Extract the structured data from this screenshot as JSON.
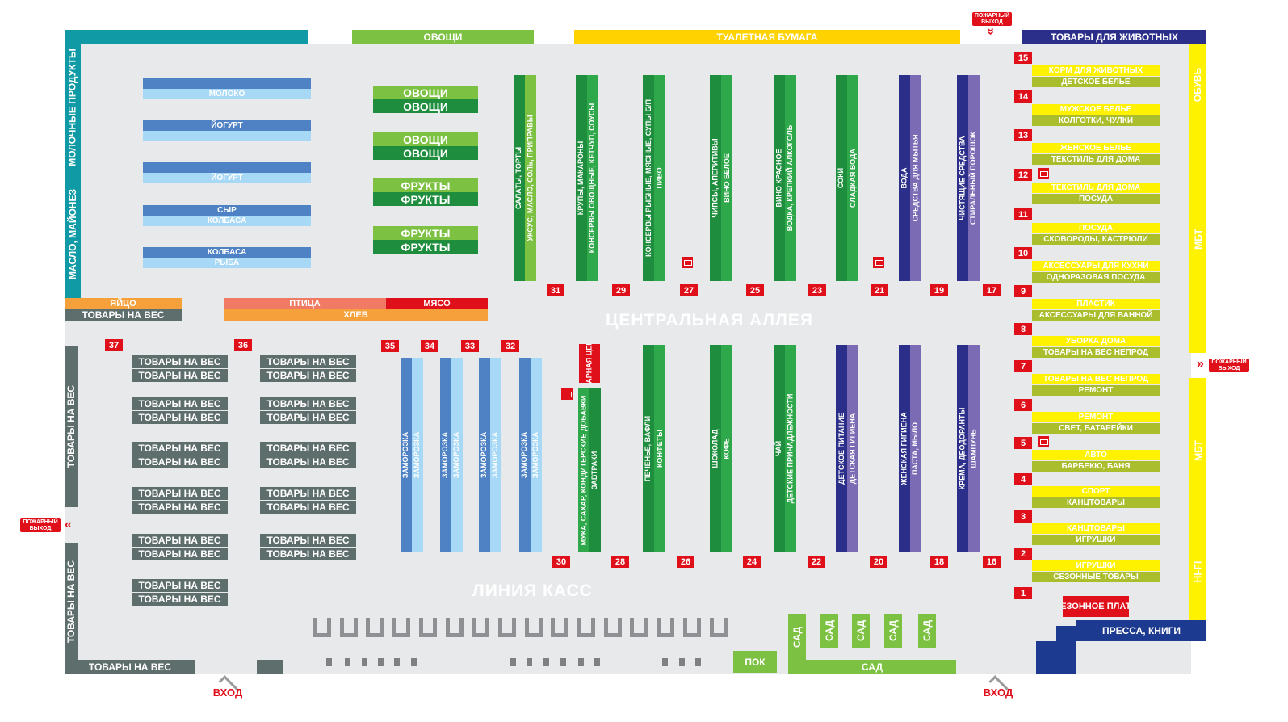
{
  "colors": {
    "teal": "#0f9aa6",
    "lime": "#7dc143",
    "darkgreen": "#1e8e3e",
    "green": "#2ea84a",
    "yellow": "#ffd200",
    "lightyellow": "#fff200",
    "olive": "#aabd2c",
    "navy": "#2b2f8a",
    "purple": "#7b6bb5",
    "blue": "#4f82c4",
    "lightblue": "#a7d8f5",
    "slate": "#5e6e6c",
    "orange": "#f6a03c",
    "salmon": "#f07a63",
    "red": "#e0101b",
    "grey": "#8f9093",
    "royal": "#1c3a8f"
  },
  "top": {
    "vegetables": "ОВОЩИ",
    "toilet_paper": "ТУАЛЕТНАЯ БУМАГА",
    "pets": "ТОВАРЫ ДЛЯ ЖИВОТНЫХ"
  },
  "left_wall": {
    "dairy": "МОЛОЧНЫЕ ПРОДУКТЫ",
    "oil": "МАСЛО, МАЙОНЕЗ",
    "weight_top": "ТОВАРЫ НА ВЕС",
    "weight_bottom": "ТОВАРЫ НА ВЕС",
    "weight_floor": "ТОВАРЫ НА ВЕС"
  },
  "right_wall": {
    "shoes": "ОБУВЬ",
    "mbt1": "МБТ",
    "mbt2": "МБТ",
    "hifi": "HI-FI"
  },
  "dairy_racks": [
    {
      "top": "",
      "bottom": "МОЛОКО"
    },
    {
      "top": "ЙОГУРТ",
      "bottom": ""
    },
    {
      "top": "",
      "bottom": "ЙОГУРТ"
    },
    {
      "top": "СЫР",
      "bottom": "КОЛБАСА"
    },
    {
      "top": "КОЛБАСА",
      "bottom": "РЫБА"
    }
  ],
  "produce": [
    {
      "top": "ОВОЩИ",
      "bottom": "ОВОЩИ"
    },
    {
      "top": "ОВОЩИ",
      "bottom": "ОВОЩИ"
    },
    {
      "top": "ФРУКТЫ",
      "bottom": "ФРУКТЫ"
    },
    {
      "top": "ФРУКТЫ",
      "bottom": "ФРУКТЫ"
    }
  ],
  "mid_left": {
    "egg": "ЯЙЦО",
    "weight": "ТОВАРЫ НА ВЕС",
    "poultry": "ПТИЦА",
    "meat": "МЯСО",
    "bread": "ХЛЕБ"
  },
  "upper_aisles": [
    {
      "a": "САЛАТЫ, ТОРТЫ",
      "b": "УКСУС, МАСЛО, СОЛЬ, ПРИПРАВЫ",
      "num": "31"
    },
    {
      "a": "КРУПЫ, МАКАРОНЫ",
      "b": "КОНСЕРВЫ ОВОЩНЫЕ, КЕТЧУП, СОУСЫ",
      "num": "29"
    },
    {
      "a": "КОНСЕРВЫ РЫБНЫЕ, МЯСНЫЕ, СУПЫ Б/П",
      "b": "ПИВО",
      "num": "27"
    },
    {
      "a": "ЧИПСЫ, АПЕРИТИВЫ",
      "b": "ВИНО БЕЛОЕ",
      "num": "25"
    },
    {
      "a": "ВИНО КРАСНОЕ",
      "b": "ВОДКА, КРЕПКИЙ АЛКОГОЛЬ",
      "num": "23"
    },
    {
      "a": "СОКИ",
      "b": "СЛАДКАЯ ВОДА",
      "num": "21"
    },
    {
      "a": "ВОДА",
      "b": "СРЕДСТВА ДЛЯ МЫТЬЯ",
      "num": "19"
    },
    {
      "a": "ЧИСТЯЩИЕ СРЕДСТВА",
      "b": "СТИРАЛЬНЫЙ ПОРОШОК",
      "num": "17"
    }
  ],
  "central_alley": "ЦЕНТРАЛЬНАЯ АЛЛЕЯ",
  "checkout_line": "ЛИНИЯ КАСС",
  "weight_tables": [
    {
      "top": "ТОВАРЫ НА ВЕС",
      "bottom": "ТОВАРЫ НА ВЕС"
    },
    {
      "top": "ТОВАРЫ НА ВЕС",
      "bottom": "ТОВАРЫ НА ВЕС"
    },
    {
      "top": "ТОВАРЫ НА ВЕС",
      "bottom": "ТОВАРЫ НА ВЕС"
    },
    {
      "top": "ТОВАРЫ НА ВЕС",
      "bottom": "ТОВАРЫ НА ВЕС"
    },
    {
      "top": "ТОВАРЫ НА ВЕС",
      "bottom": "ТОВАРЫ НА ВЕС"
    },
    {
      "top": "ТОВАРЫ НА ВЕС",
      "bottom": "ТОВАРЫ НА ВЕС"
    },
    {
      "top": "ТОВАРЫ НА ВЕС",
      "bottom": "ТОВАРЫ НА ВЕС"
    },
    {
      "top": "ТОВАРЫ НА ВЕС",
      "bottom": "ТОВАРЫ НА ВЕС"
    },
    {
      "top": "ТОВАРЫ НА ВЕС",
      "bottom": "ТОВАРЫ НА ВЕС"
    },
    {
      "top": "ТОВАРЫ НА ВЕС",
      "bottom": "ТОВАРЫ НА ВЕС"
    },
    {
      "top": "ТОВАРЫ НА ВЕС",
      "bottom": "ТОВАРЫ НА ВЕС"
    }
  ],
  "frozen": [
    {
      "a": "ЗАМОРОЗКА",
      "b": "ЗАМОРОЗКА",
      "num": "35"
    },
    {
      "a": "ЗАМОРОЗКА",
      "b": "ЗАМОРОЗКА",
      "num": "34"
    },
    {
      "a": "ЗАМОРОЗКА",
      "b": "ЗАМОРОЗКА",
      "num": "33"
    },
    {
      "a": "ЗАМОРОЗКА",
      "b": "ЗАМОРОЗКА",
      "num": "32"
    }
  ],
  "hot_price": "УДАРНАЯ ЦЕНА",
  "lower_aisles": [
    {
      "a": "МУКА, САХАР, КОНДИТЕРСКИЕ ДОБАВКИ",
      "b": "ЗАВТРАКИ",
      "num": "30"
    },
    {
      "a": "ПЕЧЕНЬЕ, ВАФЛИ",
      "b": "КОНФЕТЫ",
      "num": "28"
    },
    {
      "a": "ШОКОЛАД",
      "b": "КОФЕ",
      "num": "26"
    },
    {
      "a": "ЧАЙ",
      "b": "ДЕТСКИЕ ПРИНАДЛЕЖНОСТИ",
      "num": "24"
    },
    {
      "a": "ДЕТСКОЕ ПИТАНИЕ",
      "b": "ДЕТСКАЯ ГИГИЕНА",
      "num": "22"
    },
    {
      "a": "ЖЕНСКАЯ ГИГИЕНА",
      "b": "ПАСТА, МЫЛО",
      "num": "20"
    },
    {
      "a": "КРЕМА, ДЕОДОРАНТЫ",
      "b": "ШАМПУНЬ",
      "num": "18"
    }
  ],
  "numbers_misc": {
    "n37": "37",
    "n36": "36",
    "n16": "16"
  },
  "right_racks": [
    {
      "top": "КОРМ ДЛЯ ЖИВОТНЫХ",
      "bottom": "ДЕТСКОЕ БЕЛЬЕ"
    },
    {
      "top": "МУЖСКОЕ БЕЛЬЕ",
      "bottom": "КОЛГОТКИ, ЧУЛКИ"
    },
    {
      "top": "ЖЕНСКОЕ БЕЛЬЕ",
      "bottom": "ТЕКСТИЛЬ ДЛЯ ДОМА"
    },
    {
      "top": "ТЕКСТИЛЬ ДЛЯ ДОМА",
      "bottom": "ПОСУДА"
    },
    {
      "top": "ПОСУДА",
      "bottom": "СКОВОРОДЫ, КАСТРЮЛИ"
    },
    {
      "top": "АКСЕССУАРЫ ДЛЯ КУХНИ",
      "bottom": "ОДНОРАЗОВАЯ ПОСУДА"
    },
    {
      "top": "ПЛАСТИК",
      "bottom": "АКСЕССУАРЫ ДЛЯ ВАННОЙ"
    },
    {
      "top": "УБОРКА ДОМА",
      "bottom": "ТОВАРЫ НА ВЕС НЕПРОД"
    },
    {
      "top": "ТОВАРЫ НА ВЕС НЕПРОД",
      "bottom": "РЕМОНТ"
    },
    {
      "top": "РЕМОНТ",
      "bottom": "СВЕТ, БАТАРЕЙКИ"
    },
    {
      "top": "АВТО",
      "bottom": "БАРБЕКЮ, БАНЯ"
    },
    {
      "top": "СПОРТ",
      "bottom": "КАНЦТОВАРЫ"
    },
    {
      "top": "КАНЦТОВАРЫ",
      "bottom": "ИГРУШКИ"
    },
    {
      "top": "ИГРУШКИ",
      "bottom": "СЕЗОННЫЕ ТОВАРЫ"
    }
  ],
  "right_numbers": [
    "15",
    "14",
    "13",
    "12",
    "11",
    "10",
    "9",
    "8",
    "7",
    "6",
    "5",
    "4",
    "3",
    "2",
    "1"
  ],
  "seasonal": "СЕЗОННОЕ ПЛАТО",
  "press": "ПРЕССА, КНИГИ",
  "garden": {
    "vertical": [
      "САД",
      "САД",
      "САД",
      "САД",
      "САД"
    ],
    "bottom": "САД"
  },
  "pok": "ПОК",
  "fire_exit": "ПОЖАРНЫЙ ВЫХОД",
  "entrance": "ВХОД"
}
